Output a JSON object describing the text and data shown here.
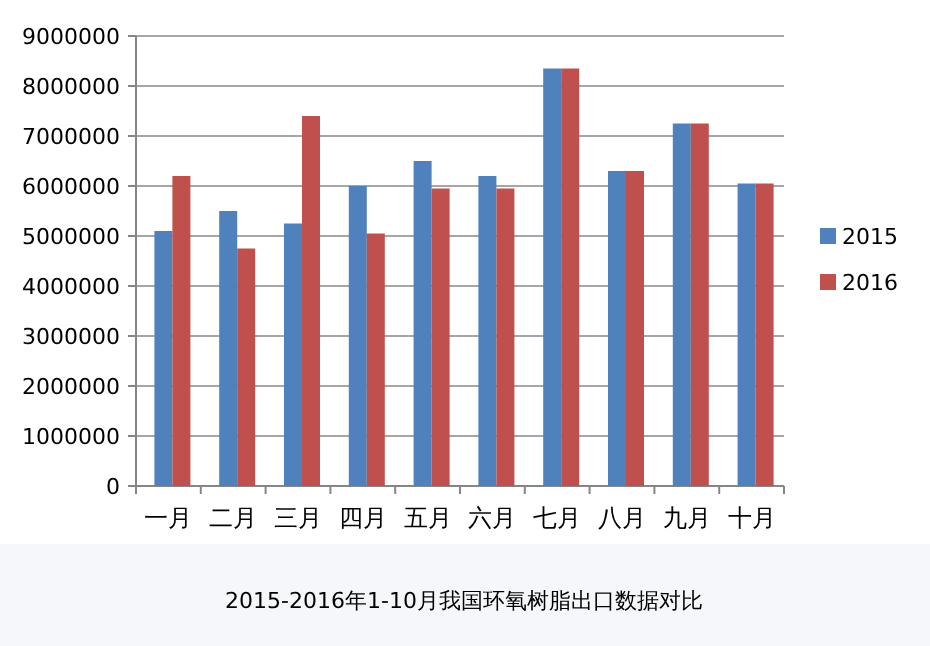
{
  "chart_data": {
    "type": "bar",
    "title": "2015-2016年1-10月我国环氧树脂出口数据对比",
    "categories": [
      "一月",
      "二月",
      "三月",
      "四月",
      "五月",
      "六月",
      "七月",
      "八月",
      "九月",
      "十月"
    ],
    "series": [
      {
        "name": "2015",
        "color": "#4f81bd",
        "values": [
          5100000,
          5500000,
          5250000,
          6000000,
          6500000,
          6200000,
          8350000,
          6300000,
          7250000,
          6050000
        ]
      },
      {
        "name": "2016",
        "color": "#c0504d",
        "values": [
          6200000,
          4750000,
          7400000,
          5050000,
          5950000,
          5950000,
          8350000,
          6300000,
          7250000,
          6050000
        ]
      }
    ],
    "ylim": [
      0,
      9000000
    ],
    "yticks": [
      0,
      1000000,
      2000000,
      3000000,
      4000000,
      5000000,
      6000000,
      7000000,
      8000000,
      9000000
    ],
    "grid": "y",
    "legend": "right"
  }
}
